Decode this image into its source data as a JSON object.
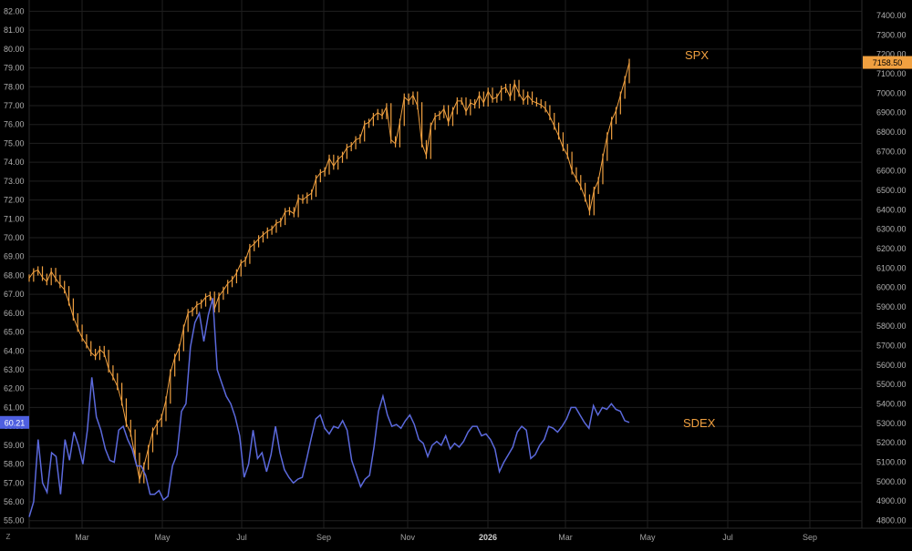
{
  "chart_data": {
    "type": "line",
    "title": "",
    "background": "#000000",
    "grid": true,
    "grid_color": "#1f1f1f",
    "x_tick_labels": [
      "Mar",
      "May",
      "Jul",
      "Sep",
      "Nov",
      "2026",
      "Mar",
      "May",
      "Jul",
      "Sep"
    ],
    "left_axis": {
      "ylim": [
        54.6,
        82.6
      ],
      "tick_labels": [
        "55.00",
        "56.00",
        "57.00",
        "58.00",
        "59.00",
        "60.00",
        "61.00",
        "62.00",
        "63.00",
        "64.00",
        "65.00",
        "66.00",
        "67.00",
        "68.00",
        "69.00",
        "70.00",
        "71.00",
        "72.00",
        "73.00",
        "74.00",
        "75.00",
        "76.00",
        "77.00",
        "78.00",
        "79.00",
        "80.00",
        "81.00",
        "82.00"
      ],
      "last_value_label": "60.21"
    },
    "right_axis": {
      "ylim": [
        4760,
        7480
      ],
      "tick_labels": [
        "4800.00",
        "4900.00",
        "5000.00",
        "5100.00",
        "5200.00",
        "5300.00",
        "5400.00",
        "5500.00",
        "5600.00",
        "5700.00",
        "5800.00",
        "5900.00",
        "6000.00",
        "6100.00",
        "6200.00",
        "6300.00",
        "6400.00",
        "6500.00",
        "6600.00",
        "6700.00",
        "6800.00",
        "6900.00",
        "7000.00",
        "7100.00",
        "7200.00",
        "7300.00",
        "7400.00"
      ],
      "last_value_label": "7158.50"
    },
    "series": [
      {
        "name": "SPX",
        "axis": "right",
        "color": "#f0a040",
        "style": "ohlc",
        "start_date": "2025-01-13",
        "end_date": "2026-04-23",
        "values": [
          6048,
          6080,
          6090,
          6052,
          6030,
          6082,
          6046,
          6015,
          5988,
          5925,
          5848,
          5790,
          5740,
          5705,
          5665,
          5645,
          5680,
          5660,
          5580,
          5540,
          5490,
          5410,
          5300,
          5250,
          5130,
          5010,
          5080,
          5170,
          5260,
          5300,
          5330,
          5420,
          5560,
          5640,
          5690,
          5790,
          5870,
          5880,
          5910,
          5920,
          5950,
          5960,
          5890,
          5955,
          5985,
          6020,
          6040,
          6075,
          6125,
          6140,
          6205,
          6225,
          6250,
          6270,
          6290,
          6300,
          6330,
          6340,
          6390,
          6395,
          6380,
          6460,
          6450,
          6470,
          6485,
          6560,
          6590,
          6600,
          6665,
          6625,
          6660,
          6680,
          6720,
          6730,
          6760,
          6770,
          6840,
          6850,
          6880,
          6900,
          6885,
          6930,
          6760,
          6740,
          6850,
          6980,
          6960,
          6990,
          6935,
          6740,
          6680,
          6830,
          6880,
          6890,
          6920,
          6850,
          6910,
          6960,
          6960,
          6905,
          6950,
          6940,
          6990,
          6950,
          7010,
          6970,
          6980,
          7020,
          7030,
          6980,
          7050,
          7000,
          6960,
          6990,
          6960,
          6950,
          6940,
          6920,
          6880,
          6830,
          6780,
          6720,
          6680,
          6600,
          6560,
          6520,
          6460,
          6390,
          6500,
          6550,
          6670,
          6780,
          6860,
          6910,
          6990,
          7070,
          7158.5
        ]
      },
      {
        "name": "SDEX",
        "axis": "left",
        "color": "#5b69dc",
        "style": "line",
        "start_date": "2025-01-13",
        "end_date": "2026-04-23",
        "values": [
          55.2,
          56.0,
          59.3,
          57.0,
          56.5,
          58.6,
          58.4,
          56.4,
          59.3,
          58.2,
          59.7,
          59.0,
          58.0,
          59.8,
          62.6,
          60.5,
          59.8,
          58.8,
          58.2,
          58.1,
          59.8,
          60.0,
          59.3,
          58.8,
          57.9,
          57.9,
          57.4,
          56.4,
          56.4,
          56.6,
          56.1,
          56.3,
          57.9,
          58.5,
          60.8,
          61.2,
          64.2,
          65.5,
          66.0,
          64.5,
          65.9,
          66.8,
          63.0,
          62.3,
          61.6,
          61.2,
          60.5,
          59.5,
          57.3,
          58.0,
          59.8,
          58.3,
          58.6,
          57.6,
          58.5,
          60.0,
          58.6,
          57.7,
          57.3,
          57.0,
          57.2,
          57.3,
          58.3,
          59.4,
          60.4,
          60.6,
          59.9,
          59.6,
          60.0,
          59.9,
          60.3,
          59.8,
          58.2,
          57.5,
          56.8,
          57.2,
          57.4,
          58.9,
          60.8,
          61.6,
          60.6,
          60.0,
          60.1,
          59.9,
          60.3,
          60.6,
          60.1,
          59.3,
          59.1,
          58.4,
          59.0,
          59.2,
          59.0,
          59.5,
          58.8,
          59.1,
          58.9,
          59.2,
          59.7,
          60.0,
          60.0,
          59.5,
          59.6,
          59.3,
          58.8,
          57.6,
          58.1,
          58.5,
          58.9,
          59.7,
          60.0,
          59.8,
          58.3,
          58.5,
          59.0,
          59.3,
          60.0,
          59.9,
          59.7,
          60.0,
          60.4,
          61.0,
          61.0,
          60.6,
          60.2,
          59.9,
          61.1,
          60.6,
          61.0,
          60.9,
          61.2,
          60.9,
          60.8,
          60.3,
          60.21
        ]
      }
    ],
    "annotations": [
      {
        "text": "SPX",
        "color": "#f0a040"
      },
      {
        "text": "SDEX",
        "color": "#f0a040"
      }
    ],
    "corner_label": "Z"
  }
}
